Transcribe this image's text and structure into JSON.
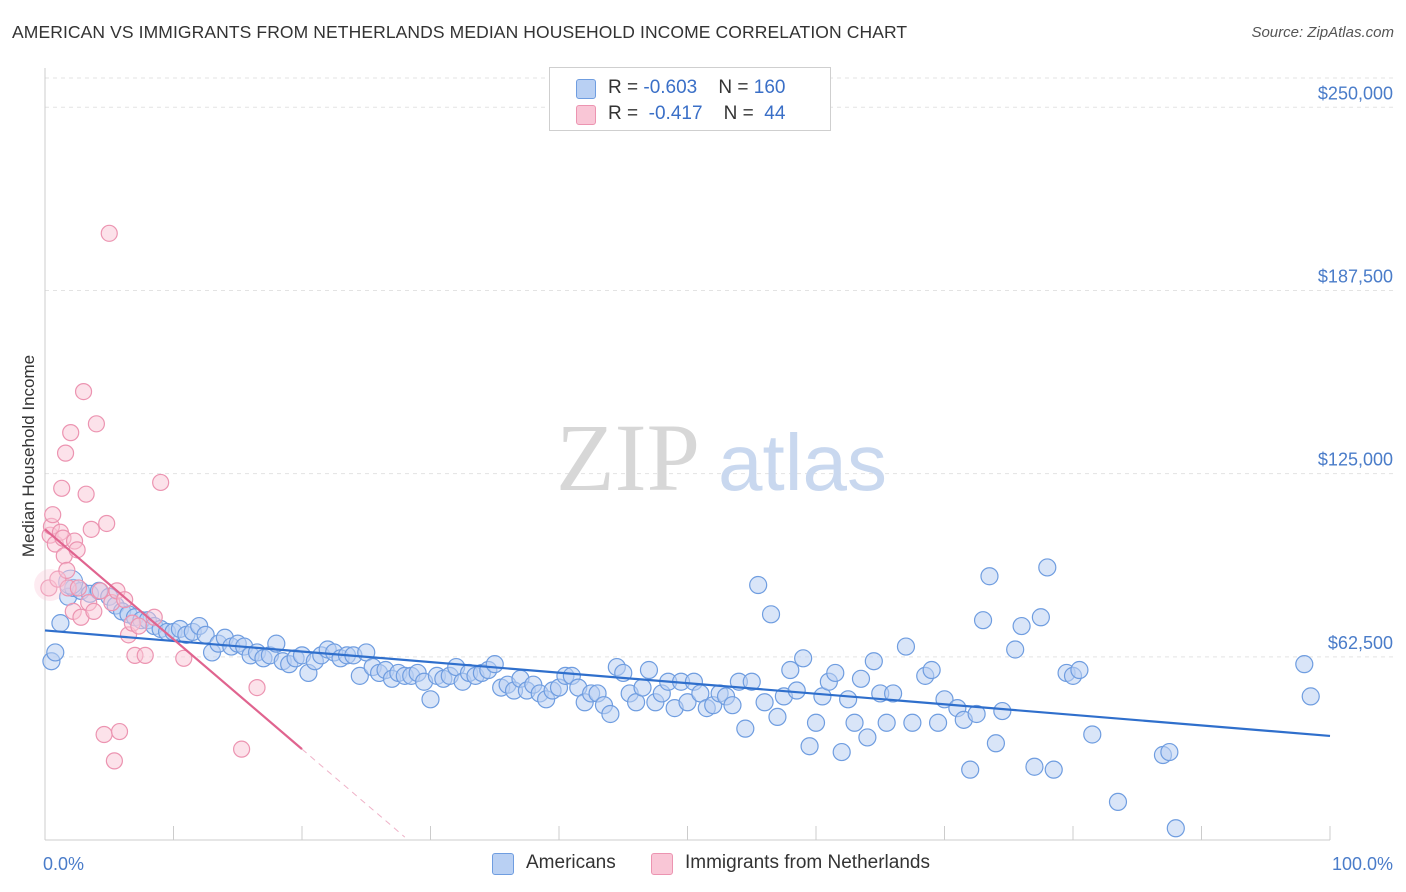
{
  "title": "AMERICAN VS IMMIGRANTS FROM NETHERLANDS MEDIAN HOUSEHOLD INCOME CORRELATION CHART",
  "source": "Source: ZipAtlas.com",
  "watermark": {
    "zip": "ZIP",
    "atlas": "atlas"
  },
  "colors": {
    "americans_fill": "#b9d0f3",
    "americans_stroke": "#6f9de0",
    "americans_line": "#2f6fcc",
    "netherlands_fill": "#f9c6d6",
    "netherlands_stroke": "#ec94b1",
    "netherlands_line": "#e0648f",
    "axis_text": "#4a7cc9"
  },
  "legend": {
    "rows": [
      {
        "r_label": "R = ",
        "r_value": "-0.603",
        "n_label": "N = ",
        "n_value": "160"
      },
      {
        "r_label": "R = ",
        "r_value": " -0.417",
        "n_label": "N = ",
        "n_value": " 44"
      }
    ]
  },
  "bottom_legend": {
    "americans": "Americans",
    "netherlands": "Immigrants from Netherlands"
  },
  "chart_data": {
    "type": "scatter",
    "title": "AMERICAN VS IMMIGRANTS FROM NETHERLANDS MEDIAN HOUSEHOLD INCOME CORRELATION CHART",
    "xlabel": "",
    "ylabel": "Median Household Income",
    "x_tick_labels": [
      "0.0%",
      "100.0%"
    ],
    "y_tick_labels": [
      "$62,500",
      "$125,000",
      "$187,500",
      "$250,000"
    ],
    "y_ticks": [
      62500,
      125000,
      187500,
      250000
    ],
    "xlim": [
      0,
      100
    ],
    "ylim": [
      0,
      260000
    ],
    "grid": true,
    "legend_position": "top-center",
    "series": [
      {
        "name": "Americans",
        "r": -0.603,
        "n": 160,
        "trend": {
          "x": [
            0,
            100
          ],
          "y": [
            71500,
            35500
          ]
        },
        "points": [
          [
            0.5,
            61000
          ],
          [
            0.8,
            64000
          ],
          [
            1.2,
            74000
          ],
          [
            1.8,
            83000
          ],
          [
            2.2,
            86000
          ],
          [
            2.8,
            85000
          ],
          [
            3.5,
            84000
          ],
          [
            4.2,
            85000
          ],
          [
            5.0,
            83000
          ],
          [
            5.5,
            80000
          ],
          [
            6.0,
            78000
          ],
          [
            6.5,
            77000
          ],
          [
            7.0,
            76000
          ],
          [
            7.5,
            75000
          ],
          [
            8.0,
            75000
          ],
          [
            8.5,
            73000
          ],
          [
            9.0,
            72000
          ],
          [
            9.5,
            71000
          ],
          [
            10.0,
            71000
          ],
          [
            10.5,
            72000
          ],
          [
            11.0,
            70000
          ],
          [
            11.5,
            71000
          ],
          [
            12.0,
            73000
          ],
          [
            12.5,
            70000
          ],
          [
            13.0,
            64000
          ],
          [
            13.5,
            67000
          ],
          [
            14.0,
            69000
          ],
          [
            14.5,
            66000
          ],
          [
            15.0,
            67000
          ],
          [
            15.5,
            66000
          ],
          [
            16.0,
            63000
          ],
          [
            16.5,
            64000
          ],
          [
            17.0,
            62000
          ],
          [
            17.5,
            63000
          ],
          [
            18.0,
            67000
          ],
          [
            18.5,
            61000
          ],
          [
            19.0,
            60000
          ],
          [
            19.5,
            62000
          ],
          [
            20.0,
            63000
          ],
          [
            20.5,
            57000
          ],
          [
            21.0,
            61000
          ],
          [
            21.5,
            63000
          ],
          [
            22.0,
            65000
          ],
          [
            22.5,
            64000
          ],
          [
            23.0,
            62000
          ],
          [
            23.5,
            63000
          ],
          [
            24.0,
            63000
          ],
          [
            24.5,
            56000
          ],
          [
            25.0,
            64000
          ],
          [
            25.5,
            59000
          ],
          [
            26.0,
            57000
          ],
          [
            26.5,
            58000
          ],
          [
            27.0,
            55000
          ],
          [
            27.5,
            57000
          ],
          [
            28.0,
            56000
          ],
          [
            28.5,
            56000
          ],
          [
            29.0,
            57000
          ],
          [
            29.5,
            54000
          ],
          [
            30.0,
            48000
          ],
          [
            30.5,
            56000
          ],
          [
            31.0,
            55000
          ],
          [
            31.5,
            56000
          ],
          [
            32.0,
            59000
          ],
          [
            32.5,
            54000
          ],
          [
            33.0,
            57000
          ],
          [
            33.5,
            56000
          ],
          [
            34.0,
            57000
          ],
          [
            34.5,
            58000
          ],
          [
            35.0,
            60000
          ],
          [
            35.5,
            52000
          ],
          [
            36.0,
            53000
          ],
          [
            36.5,
            51000
          ],
          [
            37.0,
            55000
          ],
          [
            37.5,
            51000
          ],
          [
            38.0,
            53000
          ],
          [
            38.5,
            50000
          ],
          [
            39.0,
            48000
          ],
          [
            39.5,
            51000
          ],
          [
            40.0,
            52000
          ],
          [
            40.5,
            56000
          ],
          [
            41.0,
            56000
          ],
          [
            41.5,
            52000
          ],
          [
            42.0,
            47000
          ],
          [
            42.5,
            50000
          ],
          [
            43.0,
            50000
          ],
          [
            43.5,
            46000
          ],
          [
            44.0,
            43000
          ],
          [
            44.5,
            59000
          ],
          [
            45.0,
            57000
          ],
          [
            45.5,
            50000
          ],
          [
            46.0,
            47000
          ],
          [
            46.5,
            52000
          ],
          [
            47.0,
            58000
          ],
          [
            47.5,
            47000
          ],
          [
            48.0,
            50000
          ],
          [
            48.5,
            54000
          ],
          [
            49.0,
            45000
          ],
          [
            49.5,
            54000
          ],
          [
            50.0,
            47000
          ],
          [
            50.5,
            54000
          ],
          [
            51.0,
            50000
          ],
          [
            51.5,
            45000
          ],
          [
            52.0,
            46000
          ],
          [
            52.5,
            50000
          ],
          [
            53.0,
            49000
          ],
          [
            53.5,
            46000
          ],
          [
            54.0,
            54000
          ],
          [
            54.5,
            38000
          ],
          [
            55.0,
            54000
          ],
          [
            55.5,
            87000
          ],
          [
            56.0,
            47000
          ],
          [
            56.5,
            77000
          ],
          [
            57.0,
            42000
          ],
          [
            57.5,
            49000
          ],
          [
            58.0,
            58000
          ],
          [
            58.5,
            51000
          ],
          [
            59.0,
            62000
          ],
          [
            59.5,
            32000
          ],
          [
            60.0,
            40000
          ],
          [
            60.5,
            49000
          ],
          [
            61.0,
            54000
          ],
          [
            61.5,
            57000
          ],
          [
            62.0,
            30000
          ],
          [
            62.5,
            48000
          ],
          [
            63.0,
            40000
          ],
          [
            63.5,
            55000
          ],
          [
            64.0,
            35000
          ],
          [
            64.5,
            61000
          ],
          [
            65.0,
            50000
          ],
          [
            65.5,
            40000
          ],
          [
            66.0,
            50000
          ],
          [
            67.0,
            66000
          ],
          [
            67.5,
            40000
          ],
          [
            68.5,
            56000
          ],
          [
            69.0,
            58000
          ],
          [
            69.5,
            40000
          ],
          [
            70.0,
            48000
          ],
          [
            71.0,
            45000
          ],
          [
            71.5,
            41000
          ],
          [
            72.0,
            24000
          ],
          [
            72.5,
            43000
          ],
          [
            73.0,
            75000
          ],
          [
            73.5,
            90000
          ],
          [
            74.0,
            33000
          ],
          [
            74.5,
            44000
          ],
          [
            75.5,
            65000
          ],
          [
            76.0,
            73000
          ],
          [
            77.0,
            25000
          ],
          [
            77.5,
            76000
          ],
          [
            78.0,
            93000
          ],
          [
            78.5,
            24000
          ],
          [
            79.5,
            57000
          ],
          [
            80.0,
            56000
          ],
          [
            80.5,
            58000
          ],
          [
            81.5,
            36000
          ],
          [
            83.5,
            13000
          ],
          [
            87.0,
            29000
          ],
          [
            87.5,
            30000
          ],
          [
            88.0,
            4000
          ],
          [
            98.0,
            60000
          ],
          [
            98.5,
            49000
          ]
        ]
      },
      {
        "name": "Immigrants from Netherlands",
        "r": -0.417,
        "n": 44,
        "trend": {
          "x": [
            0,
            20
          ],
          "y": [
            106000,
            31000
          ]
        },
        "trend_extension": {
          "x": [
            20,
            28
          ],
          "y": [
            31000,
            1000
          ]
        },
        "points": [
          [
            0.3,
            86000
          ],
          [
            0.4,
            104000
          ],
          [
            0.5,
            107000
          ],
          [
            0.6,
            111000
          ],
          [
            0.8,
            101000
          ],
          [
            1.0,
            89000
          ],
          [
            1.2,
            105000
          ],
          [
            1.3,
            120000
          ],
          [
            1.4,
            103000
          ],
          [
            1.5,
            97000
          ],
          [
            1.6,
            132000
          ],
          [
            1.7,
            92000
          ],
          [
            1.8,
            86000
          ],
          [
            2.0,
            139000
          ],
          [
            2.2,
            78000
          ],
          [
            2.3,
            102000
          ],
          [
            2.5,
            99000
          ],
          [
            2.6,
            86000
          ],
          [
            2.8,
            76000
          ],
          [
            3.0,
            153000
          ],
          [
            3.2,
            118000
          ],
          [
            3.4,
            81000
          ],
          [
            3.6,
            106000
          ],
          [
            3.8,
            78000
          ],
          [
            4.0,
            142000
          ],
          [
            4.3,
            85000
          ],
          [
            4.6,
            36000
          ],
          [
            4.8,
            108000
          ],
          [
            5.0,
            207000
          ],
          [
            5.2,
            81000
          ],
          [
            5.4,
            27000
          ],
          [
            5.6,
            85000
          ],
          [
            5.8,
            37000
          ],
          [
            6.2,
            82000
          ],
          [
            6.5,
            70000
          ],
          [
            6.8,
            74000
          ],
          [
            7.0,
            63000
          ],
          [
            7.3,
            73000
          ],
          [
            7.8,
            63000
          ],
          [
            8.5,
            76000
          ],
          [
            9.0,
            122000
          ],
          [
            10.8,
            62000
          ],
          [
            15.3,
            31000
          ],
          [
            16.5,
            52000
          ]
        ]
      }
    ]
  }
}
